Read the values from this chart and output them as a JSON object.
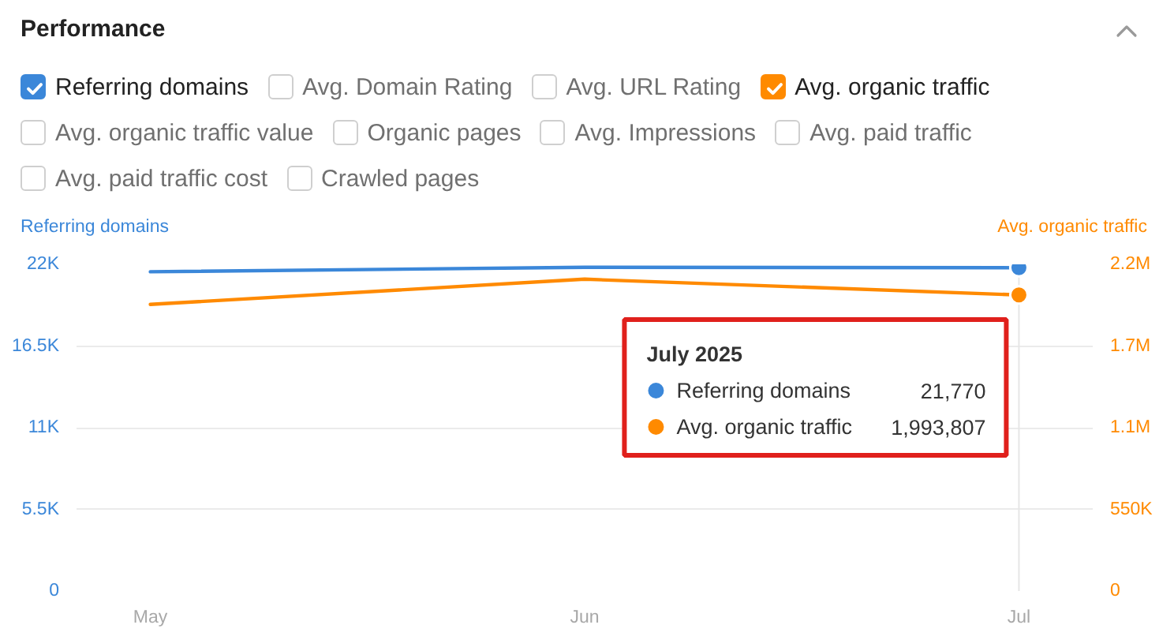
{
  "chart_data": {
    "type": "line",
    "title": "Performance",
    "ylabel": "Referring domains",
    "y2label": "Avg. organic traffic",
    "annotations": [
      "July 2025",
      "21,770",
      "1,993,807",
      "Avg. Domain Rating",
      "Avg. URL Rating",
      "Avg. organic traffic value",
      "Organic pages",
      "Avg. Impressions",
      "Avg. paid traffic",
      "Avg. paid traffic cost",
      "Crawled pages"
    ],
    "categories": [
      "May",
      "Jun",
      "Jul"
    ],
    "series": [
      {
        "name": "Referring domains",
        "color": "#3b87d9",
        "values": [
          21500,
          21800,
          21770
        ]
      },
      {
        "name": "Avg. organic traffic",
        "color": "#ff8a00",
        "axis": "y2",
        "values": [
          1930000,
          2100000,
          1993807
        ]
      }
    ],
    "ylim": [
      0,
      22000
    ],
    "yticks": [
      0,
      {
        "value": 5500,
        "label": "5.5K"
      },
      {
        "value": 11000,
        "label": "11K"
      },
      {
        "value": 16500,
        "label": "16.5K"
      },
      {
        "value": 22000,
        "label": "22K"
      }
    ],
    "y2lim": [
      0,
      2200000
    ],
    "y2ticks": [
      0,
      {
        "value": 550000,
        "label": "550K"
      },
      {
        "value": 1100000,
        "label": "1.1M"
      },
      {
        "value": 1650000,
        "label": "1.7M"
      },
      {
        "value": 2200000,
        "label": "2.2M"
      }
    ],
    "ref_lines": [
      {
        "axis": "x",
        "value": "Jul",
        "color": "#e6e6e6"
      }
    ],
    "grid": "y",
    "legend": "top",
    "line_style": "solid"
  }
}
